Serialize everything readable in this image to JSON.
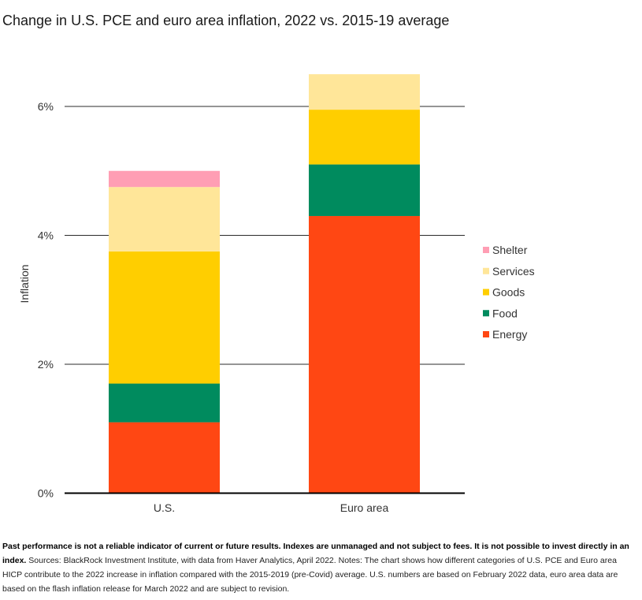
{
  "title": "Change in U.S. PCE and euro area inflation, 2022 vs. 2015-19 average",
  "chart_data": {
    "type": "bar",
    "stacked": true,
    "title": "Change in U.S. PCE and euro area inflation, 2022 vs. 2015-19 average",
    "xlabel": "",
    "ylabel": "Inflation",
    "categories": [
      "U.S.",
      "Euro area"
    ],
    "ylim": [
      0,
      6.5
    ],
    "yticks": [
      0,
      2,
      4,
      6
    ],
    "ytick_labels": [
      "0%",
      "2%",
      "4%",
      "6%"
    ],
    "grid": true,
    "legend_position": "right",
    "series": [
      {
        "name": "Energy",
        "color": "#ff4713",
        "values": [
          1.1,
          4.3
        ]
      },
      {
        "name": "Food",
        "color": "#008b5e",
        "values": [
          0.6,
          0.8
        ]
      },
      {
        "name": "Goods",
        "color": "#ffce00",
        "values": [
          2.05,
          0.85
        ]
      },
      {
        "name": "Services",
        "color": "#ffe699",
        "values": [
          1.0,
          0.55
        ]
      },
      {
        "name": "Shelter",
        "color": "#ff9eb4",
        "values": [
          0.25,
          0.0
        ]
      }
    ],
    "legend_order": [
      "Shelter",
      "Services",
      "Goods",
      "Food",
      "Energy"
    ]
  },
  "footnote": {
    "bold": "Past performance is not a reliable indicator of current or future results. Indexes are unmanaged and not subject to fees. It is not possible to invest directly in an index.",
    "text": "Sources: BlackRock Investment Institute, with data from Haver Analytics, April 2022. Notes: The chart shows how different categories of U.S. PCE and Euro area HICP contribute to the 2022 increase in inflation compared with the 2015-2019 (pre-Covid) average. U.S. numbers are based on February 2022 data, euro area data are based on the flash inflation release for March 2022 and are subject to revision."
  }
}
